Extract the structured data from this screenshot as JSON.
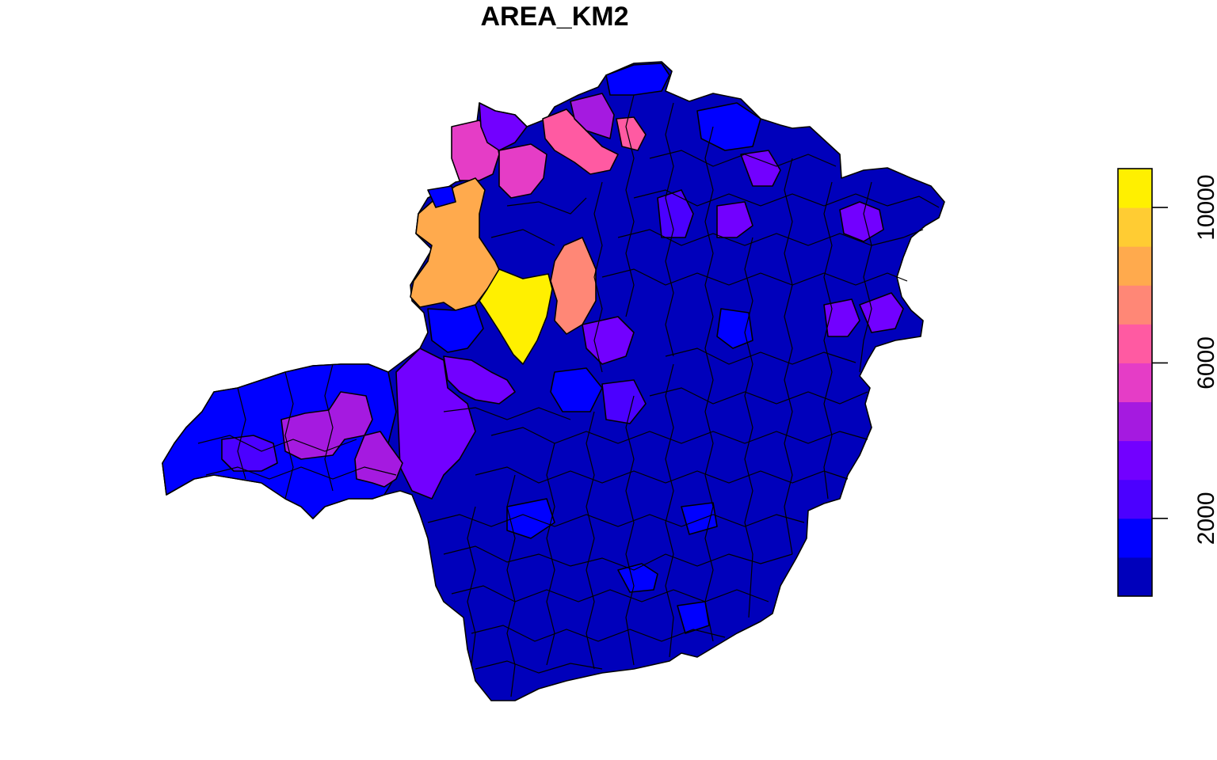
{
  "title": "AREA_KM2",
  "legend": {
    "ticks": [
      {
        "value": 2000,
        "label": "2000"
      },
      {
        "value": 6000,
        "label": "6000"
      },
      {
        "value": 10000,
        "label": "10000"
      }
    ],
    "min": 0,
    "max": 11000,
    "bins": [
      {
        "from": 0,
        "to": 1000,
        "color": "#0000BB"
      },
      {
        "from": 1000,
        "to": 2000,
        "color": "#0000FF"
      },
      {
        "from": 2000,
        "to": 3000,
        "color": "#4B00FF"
      },
      {
        "from": 3000,
        "to": 4000,
        "color": "#7200FF"
      },
      {
        "from": 4000,
        "to": 5000,
        "color": "#A51AE0"
      },
      {
        "from": 5000,
        "to": 6000,
        "color": "#E53DC6"
      },
      {
        "from": 6000,
        "to": 7000,
        "color": "#FF5AA2"
      },
      {
        "from": 7000,
        "to": 8000,
        "color": "#FF8776"
      },
      {
        "from": 8000,
        "to": 9000,
        "color": "#FFAA4D"
      },
      {
        "from": 9000,
        "to": 10000,
        "color": "#FFCC33"
      },
      {
        "from": 10000,
        "to": 11000,
        "color": "#FFF000"
      }
    ]
  },
  "regions": [
    {
      "name": "state-background",
      "color": "#0000BB"
    },
    {
      "name": "south-cluster",
      "color": "#0000FF"
    },
    {
      "name": "west-triangle-east",
      "color": "#7200FF"
    },
    {
      "name": "west-triangle-west",
      "color": "#0000FF"
    },
    {
      "name": "west-purple-1",
      "color": "#A51AE0"
    },
    {
      "name": "west-purple-2",
      "color": "#A51AE0"
    },
    {
      "name": "west-blue-1",
      "color": "#4B00FF"
    },
    {
      "name": "north-magenta-west",
      "color": "#E53DC6"
    },
    {
      "name": "north-magenta-2",
      "color": "#E53DC6"
    },
    {
      "name": "north-purple",
      "color": "#7200FF"
    },
    {
      "name": "north-pink",
      "color": "#FF5AA2"
    },
    {
      "name": "north-pink-2",
      "color": "#FF5AA2"
    },
    {
      "name": "north-purple-2",
      "color": "#A51AE0"
    },
    {
      "name": "orange-region",
      "color": "#FFAA4D"
    },
    {
      "name": "salmon-region",
      "color": "#FF8776"
    },
    {
      "name": "yellow-region",
      "color": "#FFF000"
    },
    {
      "name": "center-purple-1",
      "color": "#7200FF"
    },
    {
      "name": "center-purple-2",
      "color": "#7200FF"
    },
    {
      "name": "center-blue-1",
      "color": "#0000FF"
    },
    {
      "name": "northeast-purple-1",
      "color": "#7200FF"
    },
    {
      "name": "northeast-purple-2",
      "color": "#7200FF"
    },
    {
      "name": "northeast-purple-3",
      "color": "#7200FF"
    },
    {
      "name": "northeast-blue-1",
      "color": "#0000FF"
    },
    {
      "name": "northeast-blue-2",
      "color": "#4B00FF"
    },
    {
      "name": "east-purple-1",
      "color": "#7200FF"
    },
    {
      "name": "east-purple-2",
      "color": "#7200FF"
    },
    {
      "name": "east-blue-1",
      "color": "#0000FF"
    },
    {
      "name": "north-blue-1",
      "color": "#0000FF"
    },
    {
      "name": "north-blue-2",
      "color": "#0000FF"
    },
    {
      "name": "center-blue-2",
      "color": "#0000FF"
    },
    {
      "name": "center-blue-3",
      "color": "#4B00FF"
    },
    {
      "name": "south-blue-1",
      "color": "#0000FF"
    },
    {
      "name": "south-blue-2",
      "color": "#0000FF"
    },
    {
      "name": "south-blue-3",
      "color": "#0000FF"
    }
  ]
}
